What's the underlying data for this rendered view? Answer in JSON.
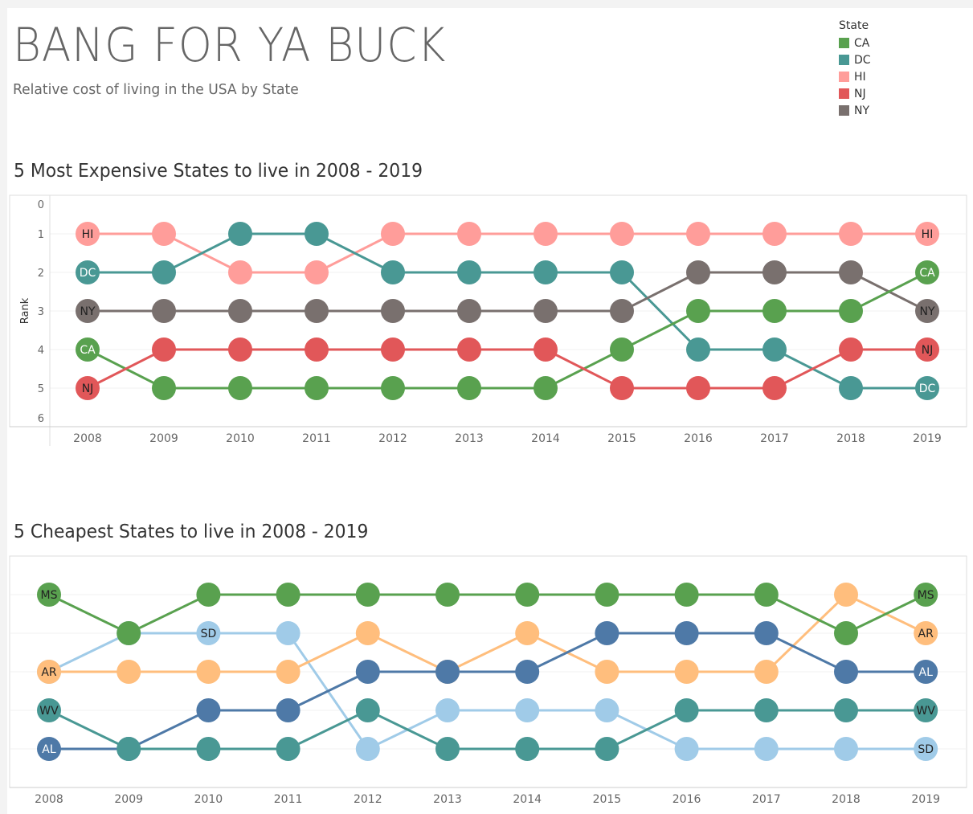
{
  "header": {
    "title": "BANG FOR YA BUCK",
    "subtitle": "Relative cost of living in the USA by State"
  },
  "legend": {
    "title": "State",
    "items": [
      {
        "label": "CA",
        "color": "#59a14f"
      },
      {
        "label": "DC",
        "color": "#499894"
      },
      {
        "label": "HI",
        "color": "#ff9d9a"
      },
      {
        "label": "NJ",
        "color": "#e15759"
      },
      {
        "label": "NY",
        "color": "#79706e"
      }
    ]
  },
  "chart_data": [
    {
      "type": "line",
      "title": "5 Most Expensive States to live in 2008 - 2019",
      "xlabel": "",
      "ylabel": "Rank",
      "x": [
        2008,
        2009,
        2010,
        2011,
        2012,
        2013,
        2014,
        2015,
        2016,
        2017,
        2018,
        2019
      ],
      "yticks": [
        "0",
        "1",
        "2",
        "3",
        "4",
        "5",
        "6"
      ],
      "ylim": [
        0,
        6
      ],
      "y_reversed": true,
      "series": [
        {
          "name": "HI",
          "color": "#ff9d9a",
          "values": [
            1,
            1,
            2,
            2,
            1,
            1,
            1,
            1,
            1,
            1,
            1,
            1
          ],
          "label_years": [
            2008,
            2019
          ]
        },
        {
          "name": "DC",
          "color": "#499894",
          "values": [
            2,
            2,
            1,
            1,
            2,
            2,
            2,
            2,
            4,
            4,
            5,
            5
          ],
          "label_years": [
            2008,
            2019
          ]
        },
        {
          "name": "NY",
          "color": "#79706e",
          "values": [
            3,
            3,
            3,
            3,
            3,
            3,
            3,
            3,
            2,
            2,
            2,
            3
          ],
          "label_years": [
            2008,
            2019
          ]
        },
        {
          "name": "CA",
          "color": "#59a14f",
          "values": [
            4,
            5,
            5,
            5,
            5,
            5,
            5,
            4,
            3,
            3,
            3,
            2
          ],
          "label_years": [
            2008,
            2019
          ]
        },
        {
          "name": "NJ",
          "color": "#e15759",
          "values": [
            5,
            4,
            4,
            4,
            4,
            4,
            4,
            5,
            5,
            5,
            4,
            4
          ],
          "label_years": [
            2008,
            2019
          ]
        }
      ]
    },
    {
      "type": "line",
      "title": "5 Cheapest States to live in 2008 - 2019",
      "xlabel": "",
      "ylabel": "",
      "x": [
        2008,
        2009,
        2010,
        2011,
        2012,
        2013,
        2014,
        2015,
        2016,
        2017,
        2018,
        2019
      ],
      "yticks": [],
      "ylim": [
        0,
        6
      ],
      "y_reversed": true,
      "series": [
        {
          "name": "SD",
          "color": "#a0cbe8",
          "values": [
            3,
            2,
            2,
            2,
            5,
            4,
            4,
            4,
            5,
            5,
            5,
            5
          ],
          "label_years": [
            2010,
            2019
          ]
        },
        {
          "name": "AR",
          "color": "#ffbe7d",
          "values": [
            3,
            3,
            3,
            3,
            2,
            3,
            2,
            3,
            3,
            3,
            1,
            2
          ],
          "label_years": [
            2008,
            2019
          ]
        },
        {
          "name": "AL",
          "color": "#4e79a7",
          "values": [
            5,
            5,
            4,
            4,
            3,
            3,
            3,
            2,
            2,
            2,
            3,
            3
          ],
          "label_years": [
            2008,
            2019
          ]
        },
        {
          "name": "WV",
          "color": "#499894",
          "values": [
            4,
            5,
            5,
            5,
            4,
            5,
            5,
            5,
            4,
            4,
            4,
            4
          ],
          "label_years": [
            2008,
            2019
          ]
        },
        {
          "name": "MS",
          "color": "#59a14f",
          "values": [
            1,
            2,
            1,
            1,
            1,
            1,
            1,
            1,
            1,
            1,
            2,
            1
          ],
          "label_years": [
            2008,
            2019
          ]
        }
      ]
    }
  ]
}
